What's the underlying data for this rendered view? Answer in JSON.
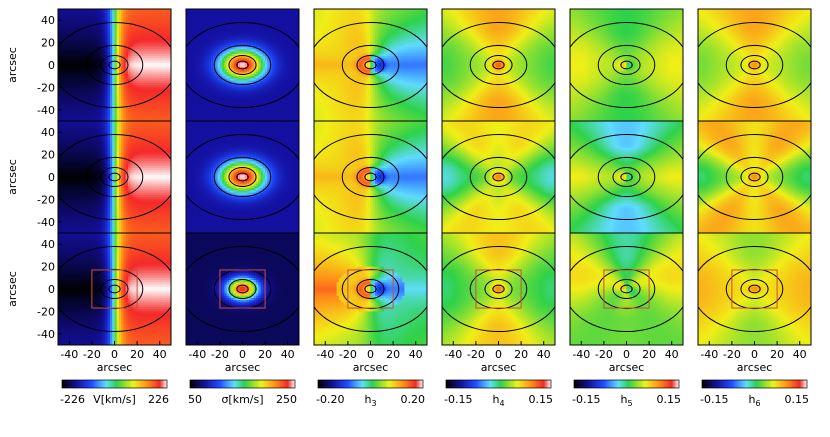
{
  "chart_data": {
    "type": "heatmap",
    "description_grid": "6 columns x 3 rows of 2D kinematic maps; rows share the same moments per column",
    "x_label": "arcsec",
    "y_label": "arcsec",
    "xlim": [
      -50,
      50
    ],
    "ylim": [
      -50,
      50
    ],
    "x_ticks": [
      "-40",
      "-20",
      "0",
      "20",
      "40"
    ],
    "x_tick_values": [
      -40,
      -20,
      0,
      20,
      40
    ],
    "y_ticks": [
      "40",
      "20",
      "0",
      "-20",
      "-40"
    ],
    "y_tick_values": [
      40,
      20,
      0,
      -20,
      -40
    ],
    "ellipse_semi_axes_arcsec": [
      [
        5,
        3.5
      ],
      [
        12,
        8.5
      ],
      [
        25,
        17.5
      ],
      [
        55,
        38
      ]
    ],
    "aperture_box_rows": [
      3
    ],
    "aperture_box_half_width_arcsec": 20,
    "aperture_box_half_height_arcsec": 17,
    "panels": [
      {
        "name": "V",
        "min": -226,
        "max": 226,
        "min_label": "-226",
        "max_label": "226",
        "symbol": "V[km/s]",
        "pattern": "velocity"
      },
      {
        "name": "sigma",
        "min": 50,
        "max": 250,
        "min_label": "50",
        "max_label": "250",
        "symbol": "σ[km/s]",
        "pattern": "dispersion"
      },
      {
        "name": "h3",
        "min": -0.2,
        "max": 0.2,
        "min_label": "-0.20",
        "max_label": "0.20",
        "symbol": "h3",
        "pattern": "h3"
      },
      {
        "name": "h4",
        "min": -0.15,
        "max": 0.15,
        "min_label": "-0.15",
        "max_label": "0.15",
        "symbol": "h4",
        "pattern": "h4"
      },
      {
        "name": "h5",
        "min": -0.15,
        "max": 0.15,
        "min_label": "-0.15",
        "max_label": "0.15",
        "symbol": "h5",
        "pattern": "h5"
      },
      {
        "name": "h6",
        "min": -0.15,
        "max": 0.15,
        "min_label": "-0.15",
        "max_label": "0.15",
        "symbol": "h6",
        "pattern": "h6"
      }
    ],
    "colors": {
      "ellipse": "#000000",
      "aperture_box": "#c8503a",
      "frame": "#000000"
    }
  }
}
